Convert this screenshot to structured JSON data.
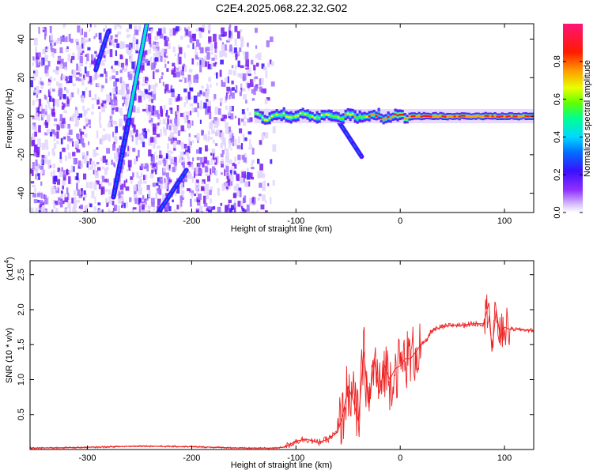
{
  "title": "C2E4.2025.068.22.32.G02",
  "chart_data": [
    {
      "type": "heatmap",
      "title": "C2E4.2025.068.22.32.G02",
      "xlabel": "Height of straight line (km)",
      "ylabel": "Frequency (Hz)",
      "xlim": [
        -355,
        128
      ],
      "ylim": [
        -50,
        48
      ],
      "xticks": [
        -300,
        -200,
        -100,
        0,
        100
      ],
      "yticks": [
        -40,
        -20,
        0,
        20,
        40
      ],
      "colorbar": {
        "label": "Normalized spectral amplitude",
        "range": [
          0,
          1
        ],
        "ticks": [
          0.0,
          0.2,
          0.4,
          0.6,
          0.8
        ],
        "colormap": [
          "#ffffff",
          "#c9a8ff",
          "#8a2be2",
          "#4a10ff",
          "#0050ff",
          "#00c8ff",
          "#00ff80",
          "#80ff00",
          "#ffff00",
          "#ff9000",
          "#ff0000",
          "#ff1070"
        ]
      },
      "features": [
        {
          "kind": "noise-region",
          "x_from": -355,
          "x_to": -120
        },
        {
          "kind": "chirp-streak",
          "x": [
            -280,
            -292
          ],
          "y": [
            44,
            24
          ]
        },
        {
          "kind": "chirp-streak",
          "x": [
            -243,
            -275
          ],
          "y": [
            48,
            -42
          ]
        },
        {
          "kind": "chirp-streak",
          "x": [
            -260,
            -275
          ],
          "y": [
            -2,
            -42
          ]
        },
        {
          "kind": "chirp-streak",
          "x": [
            -205,
            -232
          ],
          "y": [
            -28,
            -50
          ]
        },
        {
          "kind": "dispersion-tail",
          "x": [
            -60,
            -37
          ],
          "y": [
            -2,
            -21
          ]
        },
        {
          "kind": "signal-band",
          "x_from": -140,
          "x_to": 128,
          "y": 0
        }
      ]
    },
    {
      "type": "line",
      "xlabel": "Height of straight line (km)",
      "ylabel": "SNR (10 * v/v)",
      "yscale_label": "(x10",
      "yscale_exp": "4",
      "xlim": [
        -355,
        128
      ],
      "ylim": [
        0,
        2.7
      ],
      "xticks": [
        -300,
        -200,
        -100,
        0,
        100
      ],
      "yticks": [
        0.5,
        1.0,
        1.5,
        2.0,
        2.5
      ],
      "line_color": "#ee2222",
      "series": [
        {
          "x": [
            -355,
            -300,
            -250,
            -200,
            -150,
            -120,
            -110,
            -100,
            -90,
            -80,
            -70,
            -60,
            -55,
            -50,
            -45,
            -40,
            -35,
            -30,
            -25,
            -20,
            -15,
            -10,
            -5,
            0,
            5,
            10,
            15,
            20,
            25,
            30,
            40,
            50,
            60,
            70,
            80,
            85,
            88,
            92,
            96,
            100,
            105,
            110,
            120,
            128
          ],
          "y": [
            0.02,
            0.03,
            0.05,
            0.04,
            0.02,
            0.02,
            0.04,
            0.12,
            0.15,
            0.1,
            0.14,
            0.25,
            0.5,
            0.9,
            0.7,
            0.4,
            1.4,
            0.6,
            1.3,
            0.8,
            1.2,
            1.0,
            1.15,
            1.2,
            1.3,
            1.3,
            1.4,
            1.5,
            1.55,
            1.7,
            1.75,
            1.78,
            1.78,
            1.8,
            1.8,
            2.1,
            1.4,
            2.0,
            1.6,
            1.75,
            1.72,
            1.72,
            1.71,
            1.7
          ]
        }
      ]
    }
  ]
}
